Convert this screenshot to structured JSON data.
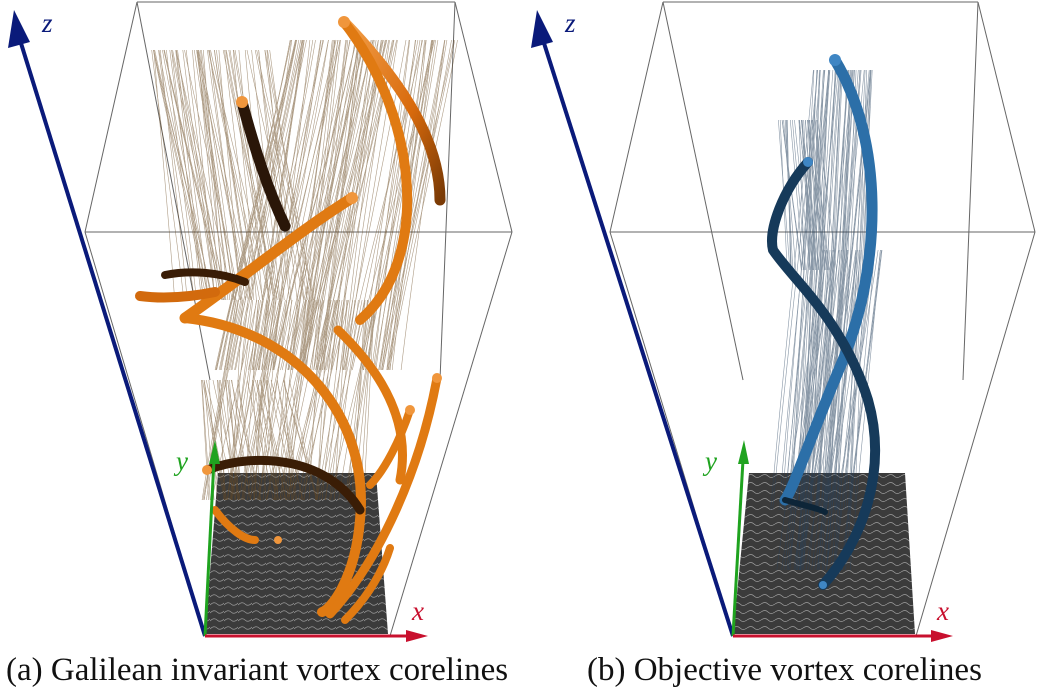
{
  "axes": {
    "x_label": "x",
    "y_label": "y",
    "z_label": "z",
    "x_color": "#c8102e",
    "y_color": "#1fa31f",
    "z_color": "#0a1a7a"
  },
  "colors": {
    "galilean_tube": "#e07a12",
    "galilean_tube_dark": "#6a3306",
    "galilean_lines": "#6b4b22",
    "objective_tube": "#2c6fa8",
    "objective_tube_dark": "#0d2538",
    "objective_lines": "#27425e",
    "floor": "#3a3a3a",
    "frame": "#555555"
  },
  "panels": [
    {
      "caption": "(a) Galilean invariant vortex corelines"
    },
    {
      "caption": "(b) Objective vortex corelines"
    }
  ]
}
